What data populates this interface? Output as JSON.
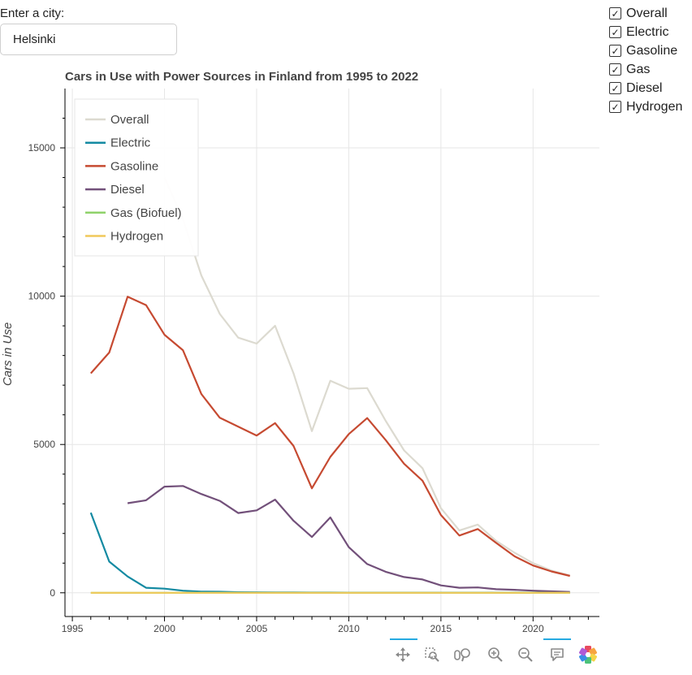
{
  "city": {
    "label": "Enter a city:",
    "value": "Helsinki"
  },
  "checkboxes": [
    {
      "label": "Overall",
      "checked": true
    },
    {
      "label": "Electric",
      "checked": true
    },
    {
      "label": "Gasoline",
      "checked": true
    },
    {
      "label": "Gas",
      "checked": true
    },
    {
      "label": "Diesel",
      "checked": true
    },
    {
      "label": "Hydrogen",
      "checked": true
    }
  ],
  "toolbar": {
    "icons": [
      "pan-icon",
      "box-zoom-icon",
      "wheel-zoom-icon",
      "zoom-in-icon",
      "zoom-out-icon",
      "hover-icon",
      "bokeh-logo-icon"
    ]
  },
  "chart_data": {
    "type": "line",
    "title": "Cars in Use with Power Sources in Finland from 1995 to 2022",
    "xlabel": "",
    "ylabel": "Cars in Use",
    "xlim": [
      1994.6,
      2023.6
    ],
    "ylim": [
      -800,
      17000
    ],
    "xticks": [
      1995,
      2000,
      2005,
      2010,
      2015,
      2020
    ],
    "yticks": [
      0,
      5000,
      10000,
      15000
    ],
    "grid": true,
    "legend_position": "top-left",
    "series": [
      {
        "name": "Overall",
        "color": "#dcdad0",
        "x": [
          1996,
          1997,
          1998,
          1999,
          2000,
          2001,
          2002,
          2003,
          2004,
          2005,
          2006,
          2007,
          2008,
          2009,
          2010,
          2011,
          2012,
          2013,
          2014,
          2015,
          2016,
          2017,
          2018,
          2019,
          2020,
          2021,
          2022
        ],
        "y": [
          null,
          null,
          null,
          null,
          14000,
          12600,
          10700,
          9400,
          8600,
          8400,
          9000,
          7400,
          5450,
          7150,
          6880,
          6900,
          5800,
          4800,
          4200,
          2850,
          2100,
          2300,
          1750,
          1350,
          1000,
          750,
          580
        ]
      },
      {
        "name": "Electric",
        "color": "#148aa2",
        "x": [
          1996,
          1997,
          1998,
          1999,
          2000,
          2001,
          2002,
          2003,
          2004,
          2005,
          2006,
          2007,
          2008,
          2009,
          2010,
          2011,
          2012,
          2013,
          2014,
          2015,
          2016,
          2017,
          2018,
          2019,
          2020,
          2021,
          2022
        ],
        "y": [
          2700,
          1050,
          550,
          170,
          140,
          70,
          40,
          35,
          20,
          15,
          10,
          10,
          8,
          8,
          6,
          5,
          5,
          5,
          5,
          5,
          5,
          5,
          5,
          5,
          5,
          5,
          5
        ]
      },
      {
        "name": "Gasoline",
        "color": "#c64a31",
        "x": [
          1996,
          1997,
          1998,
          1999,
          2000,
          2001,
          2002,
          2003,
          2004,
          2005,
          2006,
          2007,
          2008,
          2009,
          2010,
          2011,
          2012,
          2013,
          2014,
          2015,
          2016,
          2017,
          2018,
          2019,
          2020,
          2021,
          2022
        ],
        "y": [
          7400,
          8100,
          9980,
          9700,
          8700,
          8180,
          6700,
          5900,
          5600,
          5300,
          5720,
          4950,
          3520,
          4580,
          5350,
          5890,
          5150,
          4350,
          3780,
          2620,
          1930,
          2150,
          1680,
          1230,
          920,
          720,
          570
        ]
      },
      {
        "name": "Diesel",
        "color": "#72507a",
        "x": [
          1998,
          1999,
          2000,
          2001,
          2002,
          2003,
          2004,
          2005,
          2006,
          2007,
          2008,
          2009,
          2010,
          2011,
          2012,
          2013,
          2014,
          2015,
          2016,
          2017,
          2018,
          2019,
          2020,
          2021,
          2022
        ],
        "y": [
          3020,
          3120,
          3580,
          3600,
          3330,
          3100,
          2690,
          2780,
          3140,
          2430,
          1880,
          2540,
          1540,
          970,
          710,
          530,
          450,
          250,
          170,
          180,
          120,
          100,
          70,
          50,
          30
        ]
      },
      {
        "name": "Gas (Biofuel)",
        "color": "#8fd26a",
        "x": [
          1996,
          2022
        ],
        "y": [
          0,
          0
        ]
      },
      {
        "name": "Hydrogen",
        "color": "#f0c95a",
        "x": [
          1996,
          2022
        ],
        "y": [
          0,
          0
        ]
      }
    ]
  }
}
